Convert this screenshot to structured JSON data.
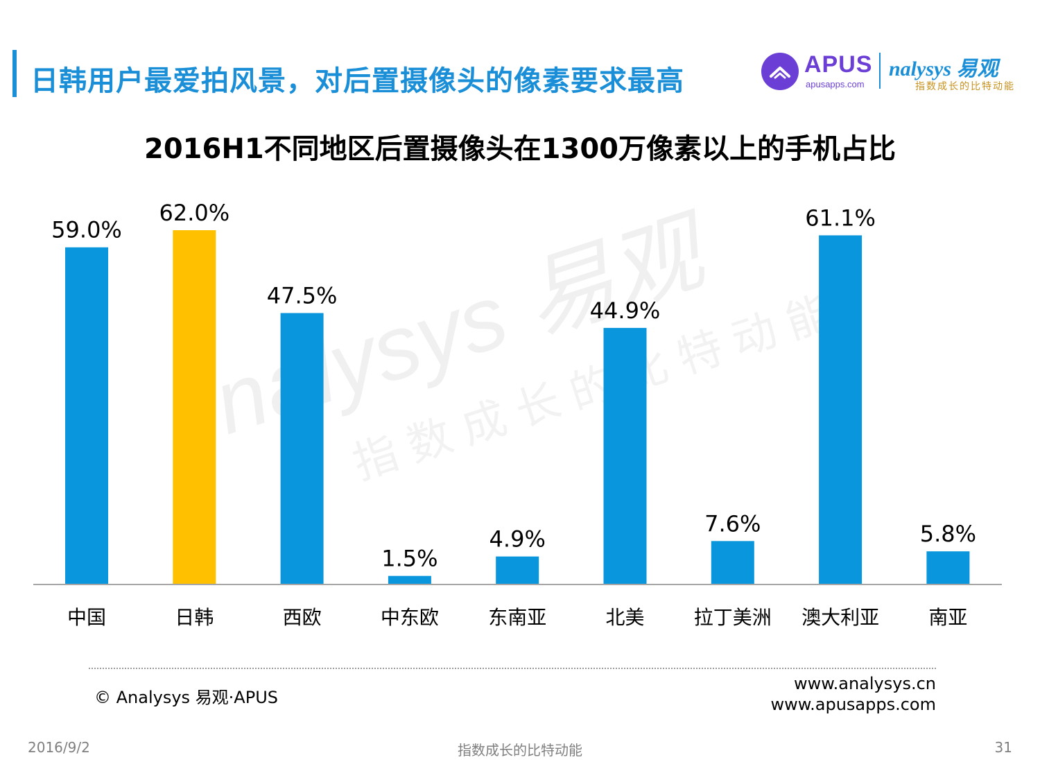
{
  "header": {
    "title": "日韩用户最爱拍风景，对后置摄像头的像素要求最高"
  },
  "logos": {
    "apus_word": "APUS",
    "apus_url": "apusapps.com",
    "analysys_word": "nalysys 易观",
    "analysys_slogan": "指数成长的比特动能"
  },
  "watermark": {
    "main": "nalysys 易观",
    "slogan": "指数成长的比特动能"
  },
  "chart_data": {
    "type": "bar",
    "title": "2016H1不同地区后置摄像头在1300万像素以上的手机占比",
    "categories": [
      "中国",
      "日韩",
      "西欧",
      "中东欧",
      "东南亚",
      "北美",
      "拉丁美洲",
      "澳大利亚",
      "南亚"
    ],
    "values": [
      59.0,
      62.0,
      47.5,
      1.5,
      4.9,
      44.9,
      7.6,
      61.1,
      5.8
    ],
    "data_labels": [
      "59.0%",
      "62.0%",
      "47.5%",
      "1.5%",
      "4.9%",
      "44.9%",
      "7.6%",
      "61.1%",
      "5.8%"
    ],
    "highlight_category": "日韩",
    "colors": {
      "default": "#0a96dc",
      "highlight": "#ffc000"
    },
    "xlabel": "",
    "ylabel": "",
    "ylim": [
      0,
      62.0
    ],
    "grid": false,
    "legend": "none"
  },
  "source": {
    "text": "© Analysys 易观·APUS",
    "url1": "www.analysys.cn",
    "url2": "www.apusapps.com"
  },
  "footer": {
    "date": "2016/9/2",
    "slogan": "指数成长的比特动能",
    "page": "31"
  }
}
